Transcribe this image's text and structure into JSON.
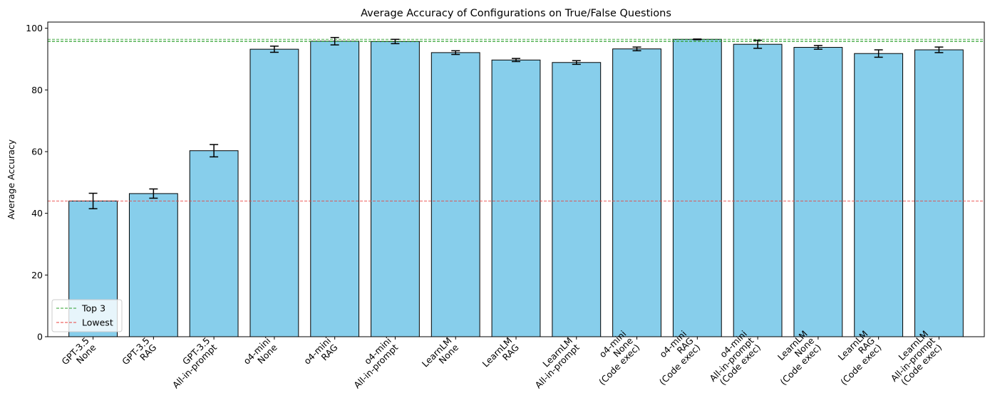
{
  "chart_data": {
    "type": "bar",
    "title": "Average Accuracy of Configurations on True/False Questions",
    "xlabel": "",
    "ylabel": "Average Accuracy",
    "ylim": [
      0,
      102
    ],
    "yticks": [
      0,
      20,
      40,
      60,
      80,
      100
    ],
    "grid": false,
    "legend_position": "lower-left",
    "colors": {
      "bar_fill": "#87ceeb",
      "bar_edge": "#000000",
      "top3_line": "#2ca02c",
      "lowest_line": "#e8423f"
    },
    "categories": [
      [
        "GPT-3.5",
        "None"
      ],
      [
        "GPT-3.5",
        "RAG"
      ],
      [
        "GPT-3.5",
        "All-in-prompt"
      ],
      [
        "o4-mini",
        "None"
      ],
      [
        "o4-mini",
        "RAG"
      ],
      [
        "o4-mini",
        "All-in-prompt"
      ],
      [
        "LearnLM",
        "None"
      ],
      [
        "LearnLM",
        "RAG"
      ],
      [
        "LearnLM",
        "All-in-prompt"
      ],
      [
        "o4-mini",
        "None",
        "(Code exec)"
      ],
      [
        "o4-mini",
        "RAG",
        "(Code exec)"
      ],
      [
        "o4-mini",
        "All-in-prompt",
        "(Code exec)"
      ],
      [
        "LearnLM",
        "None",
        "(Code exec)"
      ],
      [
        "LearnLM",
        "RAG",
        "(Code exec)"
      ],
      [
        "LearnLM",
        "All-in-prompt",
        "(Code exec)"
      ]
    ],
    "values": [
      44.0,
      46.4,
      60.3,
      93.2,
      95.8,
      95.7,
      92.1,
      89.7,
      88.9,
      93.3,
      96.4,
      94.8,
      93.8,
      91.8,
      93.0
    ],
    "errors": [
      2.5,
      1.5,
      2.0,
      1.0,
      1.2,
      0.7,
      0.6,
      0.5,
      0.6,
      0.6,
      0.1,
      1.3,
      0.6,
      1.2,
      0.9
    ],
    "reference_lines": [
      {
        "name": "Top 3",
        "value": 96.4,
        "style": "dashed",
        "color": "#2ca02c"
      },
      {
        "name": "Top 3",
        "value": 95.8,
        "style": "dashed",
        "color": "#2ca02c"
      },
      {
        "name": "Top 3",
        "value": 95.7,
        "style": "dashed",
        "color": "#2ca02c"
      },
      {
        "name": "Lowest",
        "value": 44.0,
        "style": "dashed",
        "color": "#e8423f"
      }
    ],
    "legend": [
      "Top 3",
      "Lowest"
    ]
  }
}
